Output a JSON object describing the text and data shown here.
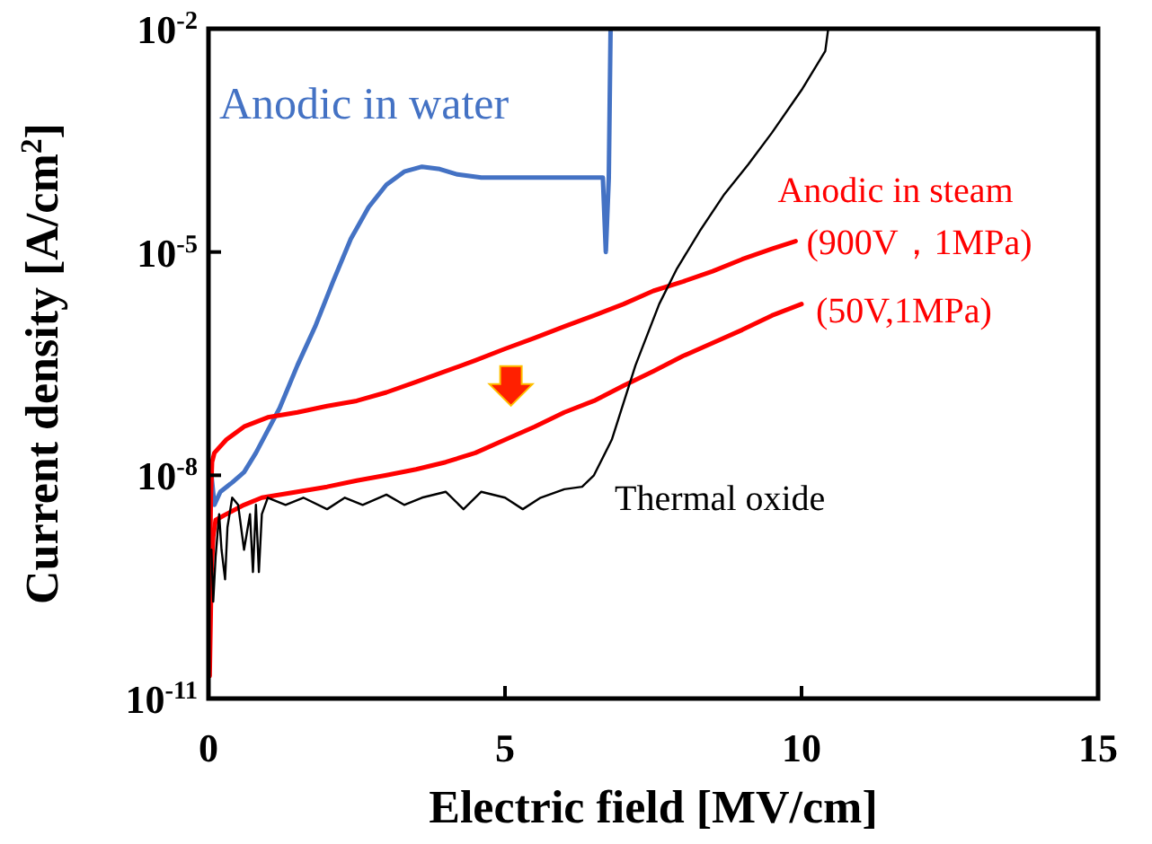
{
  "chart_data": {
    "type": "line",
    "xlabel": "Electric field [MV/cm]",
    "ylabel": "Current density [A/cm$^{2}$]",
    "log": "y",
    "xlim": [
      0,
      15
    ],
    "xticks": [
      0,
      5,
      10,
      15
    ],
    "ylim": [
      1e-11,
      0.01
    ],
    "yticks": [
      {
        "value": 0.01,
        "label": "10$^{-2}$"
      },
      {
        "value": 1e-05,
        "label": "10$^{-5}$"
      },
      {
        "value": 1e-08,
        "label": "10$^{-8}$"
      },
      {
        "value": 1e-11,
        "label": "10$^{-11}$"
      }
    ],
    "grid": false,
    "marker": "none",
    "line_style": "solid",
    "annotations": [
      "Anodic in steam"
    ],
    "series": [
      {
        "name": "Anodic in water",
        "color": "#4472c4",
        "x": [
          0.05,
          0.1,
          0.2,
          0.4,
          0.6,
          0.8,
          1.0,
          1.2,
          1.5,
          1.8,
          2.1,
          2.4,
          2.7,
          3.0,
          3.3,
          3.6,
          3.9,
          4.2,
          4.6,
          5.0,
          5.5,
          6.0,
          6.4,
          6.65,
          6.7,
          6.75,
          6.78
        ],
        "values": [
          1e-08,
          4e-09,
          6e-09,
          8e-09,
          1.1e-08,
          2e-08,
          4e-08,
          8e-08,
          3e-07,
          1e-06,
          4e-06,
          1.5e-05,
          4e-05,
          8e-05,
          0.00012,
          0.00014,
          0.00013,
          0.00011,
          0.0001,
          0.0001,
          0.0001,
          0.0001,
          0.0001,
          0.0001,
          1e-05,
          0.0001,
          0.01
        ]
      },
      {
        "name": "(900V，1MPa)",
        "color": "#ff0000",
        "x": [
          0.02,
          0.04,
          0.06,
          0.1,
          0.3,
          0.6,
          1.0,
          1.5,
          2.0,
          2.5,
          3.0,
          3.5,
          4.0,
          4.5,
          5.0,
          5.5,
          6.0,
          6.5,
          7.0,
          7.5,
          8.0,
          8.5,
          9.0,
          9.5,
          9.9
        ],
        "values": [
          3e-10,
          5e-09,
          1.5e-08,
          2e-08,
          3e-08,
          4.5e-08,
          6e-08,
          7e-08,
          8.5e-08,
          1e-07,
          1.3e-07,
          1.8e-07,
          2.5e-07,
          3.5e-07,
          5e-07,
          7e-07,
          1e-06,
          1.4e-06,
          2e-06,
          3e-06,
          4e-06,
          5.5e-06,
          8e-06,
          1.1e-05,
          1.4e-05
        ]
      },
      {
        "name": "(50V,1MPa)",
        "color": "#ff0000",
        "x": [
          0.02,
          0.05,
          0.08,
          0.12,
          0.3,
          0.6,
          0.9,
          1.5,
          2.0,
          2.5,
          3.0,
          3.5,
          4.0,
          4.5,
          5.0,
          5.5,
          6.0,
          6.5,
          7.0,
          7.5,
          8.0,
          8.5,
          9.0,
          9.5,
          10.0
        ],
        "values": [
          2e-11,
          5e-10,
          1.5e-09,
          2.5e-09,
          3e-09,
          4e-09,
          5e-09,
          6e-09,
          7e-09,
          8.5e-09,
          1e-08,
          1.2e-08,
          1.5e-08,
          2e-08,
          3e-08,
          4.5e-08,
          7e-08,
          1e-07,
          1.6e-07,
          2.5e-07,
          4e-07,
          6e-07,
          9e-07,
          1.4e-06,
          2e-06
        ]
      },
      {
        "name": "Thermal oxide",
        "color": "#000000",
        "x": [
          0.05,
          0.08,
          0.12,
          0.18,
          0.22,
          0.28,
          0.32,
          0.4,
          0.5,
          0.6,
          0.7,
          0.75,
          0.8,
          0.85,
          0.9,
          1.0,
          1.3,
          1.6,
          2.0,
          2.3,
          2.6,
          3.0,
          3.3,
          3.6,
          4.0,
          4.3,
          4.6,
          5.0,
          5.3,
          5.6,
          6.0,
          6.3,
          6.5,
          6.8,
          7.2,
          7.6,
          7.9,
          8.3,
          8.7,
          9.1,
          9.5,
          10.0,
          10.4,
          10.45
        ],
        "values": [
          1e-09,
          2e-10,
          8e-10,
          3e-09,
          1e-09,
          4e-10,
          2e-09,
          5e-09,
          4e-09,
          1e-09,
          3e-09,
          5e-10,
          4e-09,
          5e-10,
          3e-09,
          5e-09,
          4e-09,
          5e-09,
          3.5e-09,
          5e-09,
          4e-09,
          5.5e-09,
          4e-09,
          5e-09,
          6e-09,
          3.5e-09,
          6e-09,
          5e-09,
          3.5e-09,
          5e-09,
          6.5e-09,
          7e-09,
          1e-08,
          3e-08,
          3e-07,
          2e-06,
          6e-06,
          2e-05,
          6e-05,
          0.00015,
          0.0004,
          0.0015,
          0.005,
          0.01
        ]
      }
    ]
  }
}
